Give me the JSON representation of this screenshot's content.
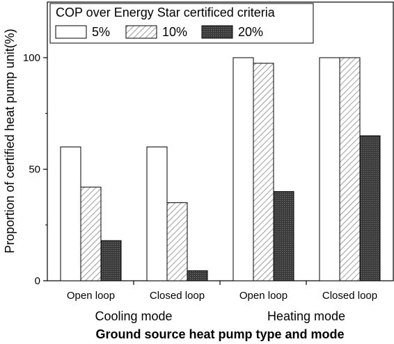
{
  "chart_data": {
    "type": "bar",
    "categories": [
      "Open loop",
      "Closed loop",
      "Open loop",
      "Closed loop"
    ],
    "groups": [
      {
        "label": "Cooling mode",
        "span": [
          0,
          1
        ]
      },
      {
        "label": "Heating mode",
        "span": [
          2,
          3
        ]
      }
    ],
    "series": [
      {
        "name": "5%",
        "values": [
          60,
          60,
          100,
          100
        ],
        "fill": "#ffffff"
      },
      {
        "name": "10%",
        "values": [
          42,
          35,
          97.5,
          100
        ],
        "fill": "hatch"
      },
      {
        "name": "20%",
        "values": [
          18,
          4.5,
          40,
          65
        ],
        "fill": "#4a4a4a"
      }
    ],
    "legend_title": "COP over Energy Star certificed criteria",
    "xlabel": "Ground source heat pump type and mode",
    "ylabel": "Proportion of certified heat pump unit(%)",
    "ylim": [
      0,
      100
    ],
    "yticks": [
      0,
      50,
      100
    ],
    "grid": false,
    "legend_position": "top"
  }
}
